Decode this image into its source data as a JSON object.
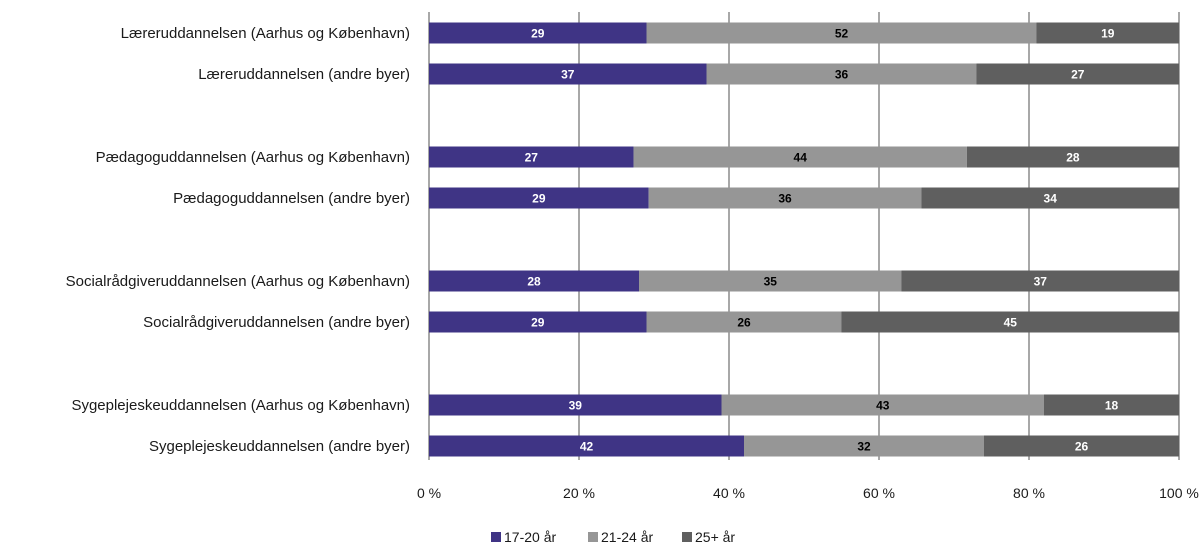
{
  "chart_data": {
    "type": "bar",
    "orientation": "horizontal",
    "stacked": true,
    "percent_stacked": true,
    "categories": [
      "Læreruddannelsen (Aarhus og København)",
      "Læreruddannelsen (andre byer)",
      "Pædagoguddannelsen (Aarhus og København)",
      "Pædagoguddannelsen (andre byer)",
      "Socialrådgiveruddannelsen (Aarhus og København)",
      "Socialrådgiveruddannelsen (andre byer)",
      "Sygeplejeskeuddannelsen (Aarhus og København)",
      "Sygeplejeskeuddannelsen (andre byer)"
    ],
    "series": [
      {
        "name": "17-20 år",
        "color": "#3f3485",
        "label_color": "#ffffff",
        "values": [
          29,
          37,
          27,
          29,
          28,
          29,
          39,
          42
        ]
      },
      {
        "name": "21-24 år",
        "color": "#969696",
        "label_color": "#000000",
        "values": [
          52,
          36,
          44,
          36,
          35,
          26,
          43,
          32
        ]
      },
      {
        "name": "25+ år",
        "color": "#5f5f5f",
        "label_color": "#ffffff",
        "values": [
          19,
          27,
          28,
          34,
          37,
          45,
          18,
          26
        ]
      }
    ],
    "x_ticks": [
      "0 %",
      "20 %",
      "40 %",
      "60 %",
      "80 %",
      "100 %"
    ],
    "xlim": [
      0,
      100
    ],
    "grid": "vertical",
    "legend_position": "bottom"
  }
}
